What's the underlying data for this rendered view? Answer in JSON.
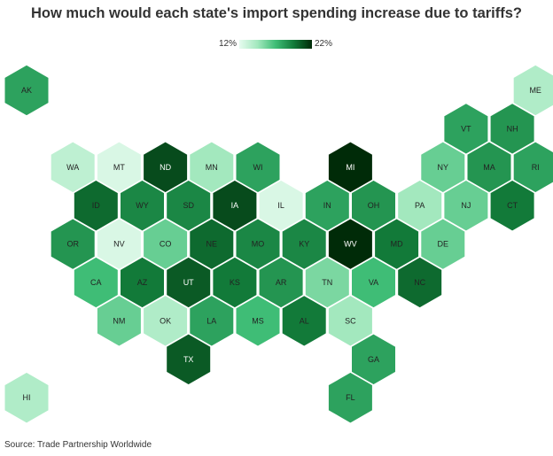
{
  "title": "How much would each state's import spending increase due to tariffs?",
  "legend": {
    "min_label": "12%",
    "max_label": "22%",
    "min_value": 12,
    "max_value": 22,
    "color_low": "#e6fbef",
    "color_high": "#002b08"
  },
  "source": "Source: Trade Partnership Worldwide",
  "chart_data": {
    "type": "heatmap",
    "title": "How much would each state's import spending increase due to tariffs?",
    "unit": "%",
    "range": [
      12,
      22
    ],
    "states": [
      {
        "code": "AK",
        "row": 0,
        "col": 0,
        "value": 18.0
      },
      {
        "code": "ME",
        "row": 0,
        "col": 11,
        "value": 14.0
      },
      {
        "code": "VT",
        "row": 1,
        "col": 9,
        "value": 18.0
      },
      {
        "code": "NH",
        "row": 1,
        "col": 10,
        "value": 18.5
      },
      {
        "code": "WA",
        "row": 2,
        "col": 1,
        "value": 13.5
      },
      {
        "code": "MT",
        "row": 2,
        "col": 2,
        "value": 12.5
      },
      {
        "code": "ND",
        "row": 2,
        "col": 3,
        "value": 21.0
      },
      {
        "code": "MN",
        "row": 2,
        "col": 4,
        "value": 14.5
      },
      {
        "code": "WI",
        "row": 2,
        "col": 5,
        "value": 18.0
      },
      {
        "code": "MI",
        "row": 2,
        "col": 7,
        "value": 22.0
      },
      {
        "code": "NY",
        "row": 2,
        "col": 9,
        "value": 16.0
      },
      {
        "code": "MA",
        "row": 2,
        "col": 10,
        "value": 18.5
      },
      {
        "code": "RI",
        "row": 2,
        "col": 11,
        "value": 18.0
      },
      {
        "code": "ID",
        "row": 3,
        "col": 1,
        "value": 20.0
      },
      {
        "code": "WY",
        "row": 3,
        "col": 2,
        "value": 19.0
      },
      {
        "code": "SD",
        "row": 3,
        "col": 3,
        "value": 19.0
      },
      {
        "code": "IA",
        "row": 3,
        "col": 4,
        "value": 21.0
      },
      {
        "code": "IL",
        "row": 3,
        "col": 5,
        "value": 12.5
      },
      {
        "code": "IN",
        "row": 3,
        "col": 6,
        "value": 18.0
      },
      {
        "code": "OH",
        "row": 3,
        "col": 7,
        "value": 18.5
      },
      {
        "code": "PA",
        "row": 3,
        "col": 8,
        "value": 14.5
      },
      {
        "code": "NJ",
        "row": 3,
        "col": 9,
        "value": 16.0
      },
      {
        "code": "CT",
        "row": 3,
        "col": 10,
        "value": 19.5
      },
      {
        "code": "OR",
        "row": 4,
        "col": 1,
        "value": 18.5
      },
      {
        "code": "NV",
        "row": 4,
        "col": 2,
        "value": 12.5
      },
      {
        "code": "CO",
        "row": 4,
        "col": 3,
        "value": 16.0
      },
      {
        "code": "NE",
        "row": 4,
        "col": 4,
        "value": 20.0
      },
      {
        "code": "MO",
        "row": 4,
        "col": 5,
        "value": 19.0
      },
      {
        "code": "KY",
        "row": 4,
        "col": 6,
        "value": 19.0
      },
      {
        "code": "WV",
        "row": 4,
        "col": 7,
        "value": 22.0
      },
      {
        "code": "MD",
        "row": 4,
        "col": 8,
        "value": 19.5
      },
      {
        "code": "DE",
        "row": 4,
        "col": 9,
        "value": 16.0
      },
      {
        "code": "CA",
        "row": 5,
        "col": 1,
        "value": 17.0
      },
      {
        "code": "AZ",
        "row": 5,
        "col": 2,
        "value": 19.5
      },
      {
        "code": "UT",
        "row": 5,
        "col": 3,
        "value": 20.5
      },
      {
        "code": "KS",
        "row": 5,
        "col": 4,
        "value": 19.5
      },
      {
        "code": "AR",
        "row": 5,
        "col": 5,
        "value": 18.5
      },
      {
        "code": "TN",
        "row": 5,
        "col": 6,
        "value": 15.5
      },
      {
        "code": "VA",
        "row": 5,
        "col": 7,
        "value": 17.0
      },
      {
        "code": "NC",
        "row": 5,
        "col": 8,
        "value": 20.0
      },
      {
        "code": "NM",
        "row": 6,
        "col": 2,
        "value": 16.0
      },
      {
        "code": "OK",
        "row": 6,
        "col": 3,
        "value": 14.0
      },
      {
        "code": "LA",
        "row": 6,
        "col": 4,
        "value": 18.0
      },
      {
        "code": "MS",
        "row": 6,
        "col": 5,
        "value": 17.0
      },
      {
        "code": "AL",
        "row": 6,
        "col": 6,
        "value": 19.5
      },
      {
        "code": "SC",
        "row": 6,
        "col": 7,
        "value": 14.5
      },
      {
        "code": "TX",
        "row": 7,
        "col": 3,
        "value": 20.5
      },
      {
        "code": "GA",
        "row": 7,
        "col": 7,
        "value": 18.0
      },
      {
        "code": "HI",
        "row": 8,
        "col": 0,
        "value": 14.0
      },
      {
        "code": "FL",
        "row": 8,
        "col": 7,
        "value": 18.0
      }
    ]
  }
}
